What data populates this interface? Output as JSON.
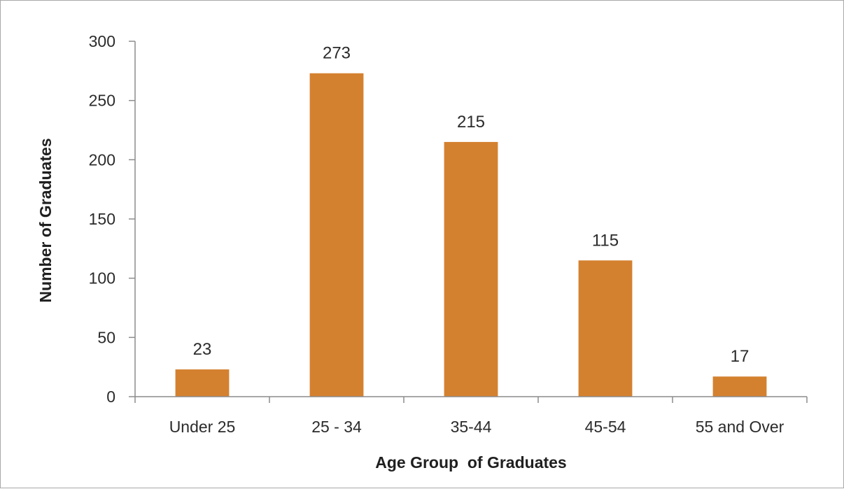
{
  "chart_data": {
    "type": "bar",
    "title": "",
    "xlabel": "Age Group  of Graduates",
    "ylabel": "Number of Graduates",
    "categories": [
      "Under 25",
      "25 - 34",
      "35-44",
      "45-54",
      "55 and Over"
    ],
    "values": [
      23,
      273,
      215,
      115,
      17
    ],
    "data_labels": [
      "23",
      "273",
      "215",
      "115",
      "17"
    ],
    "ylim": [
      0,
      300
    ],
    "yticks": [
      0,
      50,
      100,
      150,
      200,
      250,
      300
    ],
    "ytick_labels": [
      "0",
      "50",
      "100",
      "150",
      "200",
      "250",
      "300"
    ],
    "grid": false,
    "legend": "none",
    "bar_color": "#D4812F",
    "axis_color": "#8c8c8c"
  }
}
